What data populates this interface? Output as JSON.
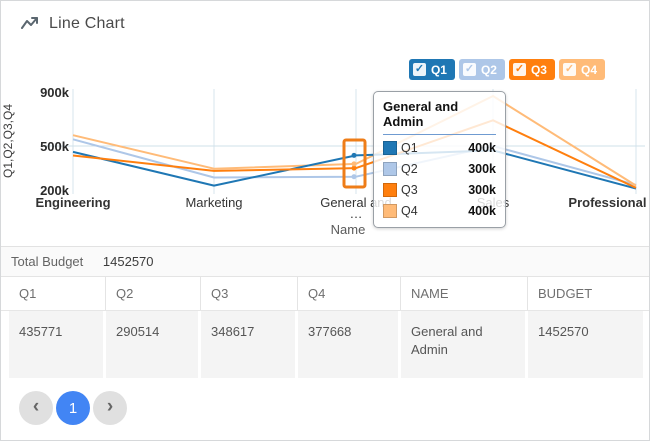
{
  "header": {
    "title": "Line Chart"
  },
  "legend": [
    {
      "label": "Q1",
      "color": "#1f77b4",
      "checked": true
    },
    {
      "label": "Q2",
      "color": "#aec7e8",
      "checked": true
    },
    {
      "label": "Q3",
      "color": "#ff7f0e",
      "checked": true
    },
    {
      "label": "Q4",
      "color": "#ffbb78",
      "checked": true
    }
  ],
  "chart_data": {
    "type": "line",
    "title": "Line Chart",
    "xlabel": "Name",
    "ylabel": "Q1,Q2,Q3,Q4",
    "y_ticks": [
      "900k",
      "500k",
      "200k"
    ],
    "ylim": [
      200000,
      900000
    ],
    "grid": true,
    "legend_position": "top-right",
    "categories": [
      "Engineering",
      "Marketing",
      "General and Admin",
      "Sales",
      "Professional Services"
    ],
    "x_tick_display": [
      [
        "Engineering"
      ],
      [
        "Marketing"
      ],
      [
        "General and",
        "…"
      ],
      [
        "Sales"
      ],
      [
        "Professional Services"
      ]
    ],
    "x_tick_bold": [
      true,
      false,
      false,
      false,
      true
    ],
    "series": [
      {
        "name": "Q1",
        "color": "#1f77b4",
        "values": [
          460000,
          230000,
          436000,
          470000,
          210000
        ]
      },
      {
        "name": "Q2",
        "color": "#aec7e8",
        "values": [
          550000,
          285000,
          291000,
          500000,
          235000
        ]
      },
      {
        "name": "Q3",
        "color": "#ff7f0e",
        "values": [
          435000,
          330000,
          349000,
          690000,
          215000
        ]
      },
      {
        "name": "Q4",
        "color": "#ffbb78",
        "values": [
          580000,
          345000,
          378000,
          870000,
          230000
        ]
      }
    ],
    "highlighted_category": "General and Admin"
  },
  "tooltip": {
    "title": "General and Admin",
    "rows": [
      {
        "label": "Q1",
        "value": "400k",
        "color": "#1f77b4"
      },
      {
        "label": "Q2",
        "value": "300k",
        "color": "#aec7e8"
      },
      {
        "label": "Q3",
        "value": "300k",
        "color": "#ff7f0e"
      },
      {
        "label": "Q4",
        "value": "400k",
        "color": "#ffbb78"
      }
    ]
  },
  "summary": {
    "label": "Total Budget",
    "value": "1452570"
  },
  "table": {
    "columns": [
      "Q1",
      "Q2",
      "Q3",
      "Q4",
      "NAME",
      "BUDGET"
    ],
    "rows": [
      [
        "435771",
        "290514",
        "348617",
        "377668",
        "General and Admin",
        "1452570"
      ]
    ]
  },
  "pagination": {
    "prev_label": "‹",
    "current_page": "1",
    "next_label": "›"
  }
}
